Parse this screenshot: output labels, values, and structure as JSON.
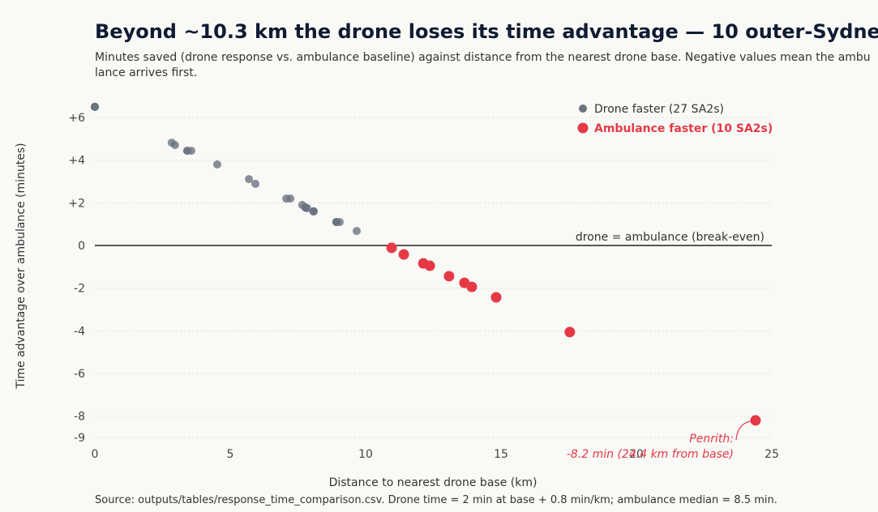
{
  "chart_data": {
    "type": "scatter",
    "title": "Beyond ~10.3 km the drone loses its time advantage — 10 outer-Sydney SA2s",
    "subtitle": "Minutes saved (drone response vs. ambulance baseline) against distance from the nearest drone base. Negative values mean the ambulance arrives first.",
    "x_label": "Distance to nearest drone base (km)",
    "y_label": "Time advantage over ambulance (minutes)",
    "source": "Source: outputs/tables/response_time_comparison.csv. Drone time = 2 min at base + 0.8 min/km; ambulance median = 8.5 min.",
    "xlim": [
      0,
      25.6
    ],
    "ylim": [
      -9,
      6.8
    ],
    "xticks": [
      0,
      5,
      10,
      15,
      20,
      25
    ],
    "yticks": [
      {
        "value": 6,
        "label": "+6"
      },
      {
        "value": 4,
        "label": "+4"
      },
      {
        "value": 2,
        "label": "+2"
      },
      0,
      -2,
      -4,
      -6,
      -8,
      -9
    ],
    "grid": true,
    "legend": "top-right",
    "reference_line": {
      "y": 0,
      "label": "drone = ambulance (break-even)",
      "color": "#222222"
    },
    "series": [
      {
        "name": "Drone faster (27 SA2s)",
        "color": "#6b7280",
        "x": [
          0,
          0,
          0,
          0,
          2.84,
          2.96,
          3.41,
          3.41,
          3.56,
          4.52,
          5.69,
          5.93,
          7.07,
          7.22,
          7.66,
          7.78,
          7.78,
          7.78,
          7.84,
          8.08,
          8.08,
          8.08,
          8.92,
          8.92,
          8.92,
          9.04,
          9.67
        ],
        "values": [
          6.5,
          6.5,
          6.5,
          6.5,
          4.82,
          4.71,
          4.44,
          4.44,
          4.44,
          3.8,
          3.11,
          2.89,
          2.2,
          2.2,
          1.9,
          1.78,
          1.78,
          1.78,
          1.75,
          1.6,
          1.6,
          1.6,
          1.1,
          1.1,
          1.1,
          1.1,
          0.68
        ]
      },
      {
        "name": "Ambulance faster (10 SA2s)",
        "color": "#e63946",
        "x": [
          10.96,
          11.41,
          12.13,
          12.37,
          13.08,
          13.65,
          13.92,
          14.82,
          17.54,
          24.4
        ],
        "values": [
          -0.11,
          -0.42,
          -0.84,
          -0.95,
          -1.44,
          -1.75,
          -1.94,
          -2.43,
          -4.06,
          -8.2
        ]
      }
    ],
    "annotation": {
      "text": [
        "Penrith:",
        "-8.2 min (24.4 km from base)"
      ],
      "x": 24.4,
      "y": -8.2,
      "color": "#e63946"
    }
  }
}
